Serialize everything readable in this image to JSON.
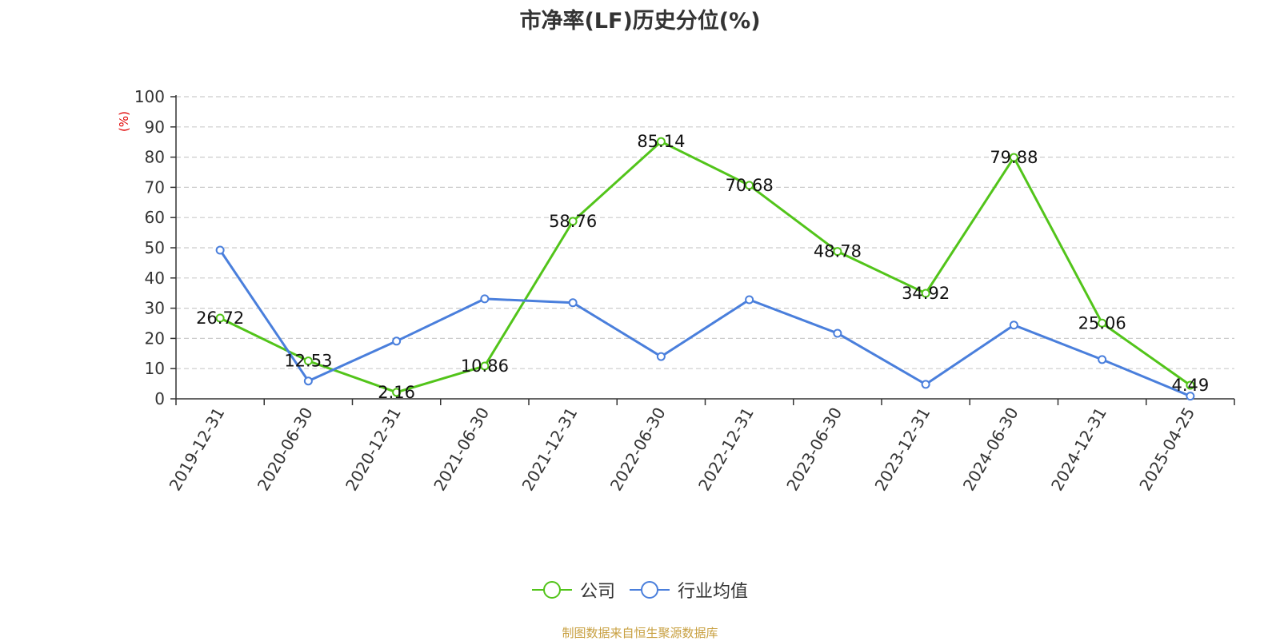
{
  "title": "市净率(LF)历史分位(%)",
  "footer": "制图数据来自恒生聚源数据库",
  "chart_data": {
    "type": "line",
    "title": "市净率(LF)历史分位(%)",
    "ylabel": "(%)",
    "ylim": [
      0,
      100
    ],
    "yticks": [
      "0",
      "10",
      "20",
      "30",
      "40",
      "50",
      "60",
      "70",
      "80",
      "90",
      "100"
    ],
    "categories": [
      "2019-12-31",
      "2020-06-30",
      "2020-12-31",
      "2021-06-30",
      "2021-12-31",
      "2022-06-30",
      "2022-12-31",
      "2023-06-30",
      "2023-12-31",
      "2024-06-30",
      "2024-12-31",
      "2025-04-25"
    ],
    "grid": true,
    "legend_position": "bottom",
    "series": [
      {
        "name": "公司",
        "color": "#52c41a",
        "values": [
          26.72,
          12.53,
          2.16,
          10.86,
          58.76,
          85.14,
          70.68,
          48.78,
          34.92,
          79.88,
          25.06,
          4.49
        ],
        "labels": [
          "26.72",
          "12.53",
          "2.16",
          "10.86",
          "58.76",
          "85.14",
          "70.68",
          "48.78",
          "34.92",
          "79.88",
          "25.06",
          "4.49"
        ]
      },
      {
        "name": "行业均值",
        "color": "#4a7fdc",
        "values": [
          49.2,
          5.9,
          19.1,
          33.1,
          31.8,
          14.0,
          32.8,
          21.7,
          4.8,
          24.4,
          13.0,
          0.9
        ]
      }
    ]
  }
}
